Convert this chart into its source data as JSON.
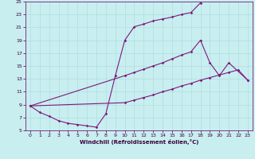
{
  "bg_color": "#c8eef0",
  "grid_color": "#b0dde0",
  "line_color": "#7b1a7b",
  "xlabel": "Windchill (Refroidissement éolien,°C)",
  "xlim": [
    0,
    23
  ],
  "ylim": [
    5,
    25
  ],
  "xticks": [
    0,
    1,
    2,
    3,
    4,
    5,
    6,
    7,
    8,
    9,
    10,
    11,
    12,
    13,
    14,
    15,
    16,
    17,
    18,
    19,
    20,
    21,
    22,
    23
  ],
  "yticks": [
    5,
    7,
    9,
    11,
    13,
    15,
    17,
    19,
    21,
    23,
    25
  ],
  "line1_x": [
    0,
    1,
    2,
    3,
    4,
    5,
    6,
    7,
    8,
    9,
    10,
    11,
    12,
    13,
    14,
    15,
    16,
    17,
    18
  ],
  "line1_y": [
    8.8,
    7.8,
    7.2,
    6.5,
    6.1,
    5.9,
    5.7,
    5.5,
    7.6,
    13.5,
    19.0,
    21.1,
    21.5,
    22.0,
    22.3,
    22.6,
    23.0,
    23.3,
    24.8
  ],
  "line2_x": [
    0,
    10,
    11,
    12,
    13,
    14,
    15,
    16,
    17,
    18,
    19,
    20,
    21,
    23
  ],
  "line2_y": [
    8.8,
    13.5,
    14.0,
    14.5,
    15.0,
    15.5,
    16.1,
    16.7,
    17.2,
    19.0,
    15.5,
    13.5,
    15.5,
    12.8
  ],
  "line3_x": [
    0,
    10,
    11,
    12,
    13,
    14,
    15,
    16,
    17,
    18,
    19,
    20,
    21,
    22,
    23
  ],
  "line3_y": [
    8.8,
    9.3,
    9.7,
    10.1,
    10.5,
    11.0,
    11.4,
    11.9,
    12.3,
    12.8,
    13.2,
    13.6,
    14.0,
    14.4,
    12.8
  ]
}
